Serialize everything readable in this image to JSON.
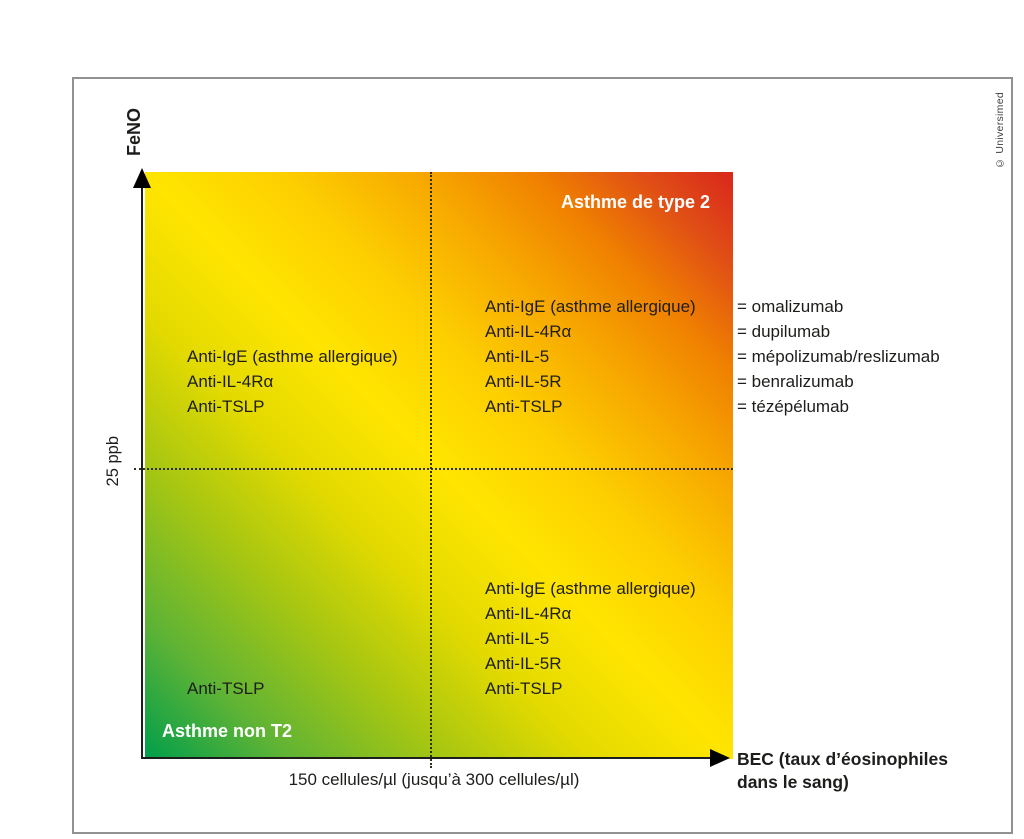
{
  "figure": {
    "copyright": "© Universimed",
    "y_axis": {
      "label": "FeNO",
      "tick": "25 ppb"
    },
    "x_axis": {
      "label_line1": "BEC (taux d’éosinophiles",
      "label_line2": "dans le sang)",
      "tick": "150 cellules/µl (jusqu’à 300 cellules/µl)"
    },
    "quadrant_titles": {
      "top_right": "Asthme de type 2",
      "bottom_left": "Asthme non T2"
    },
    "lists": {
      "top_left": [
        "Anti-IgE (asthme allergique)",
        "Anti-IL-4Rα",
        "Anti-TSLP"
      ],
      "top_right": [
        "Anti-IgE (asthme allergique)",
        "Anti-IL-4Rα",
        "Anti-IL-5",
        "Anti-IL-5R",
        "Anti-TSLP"
      ],
      "bottom_right": [
        "Anti-IgE (asthme allergique)",
        "Anti-IL-4Rα",
        "Anti-IL-5",
        "Anti-IL-5R",
        "Anti-TSLP"
      ],
      "bottom_left": [
        "Anti-TSLP"
      ]
    },
    "legend": [
      "= omalizumab",
      "= dupilumab",
      "= mépolizumab/reslizumab",
      "= benralizumab",
      "= tézépélumab"
    ],
    "colors": {
      "gradient_green": "#009e4b",
      "gradient_yellow": "#ffe500",
      "gradient_orange": "#f39200",
      "gradient_red": "#d9261c",
      "text_dark": "#1d1d1b",
      "quadrant_title_white": "#ffffff",
      "frame_border_gray": "#919191"
    }
  }
}
